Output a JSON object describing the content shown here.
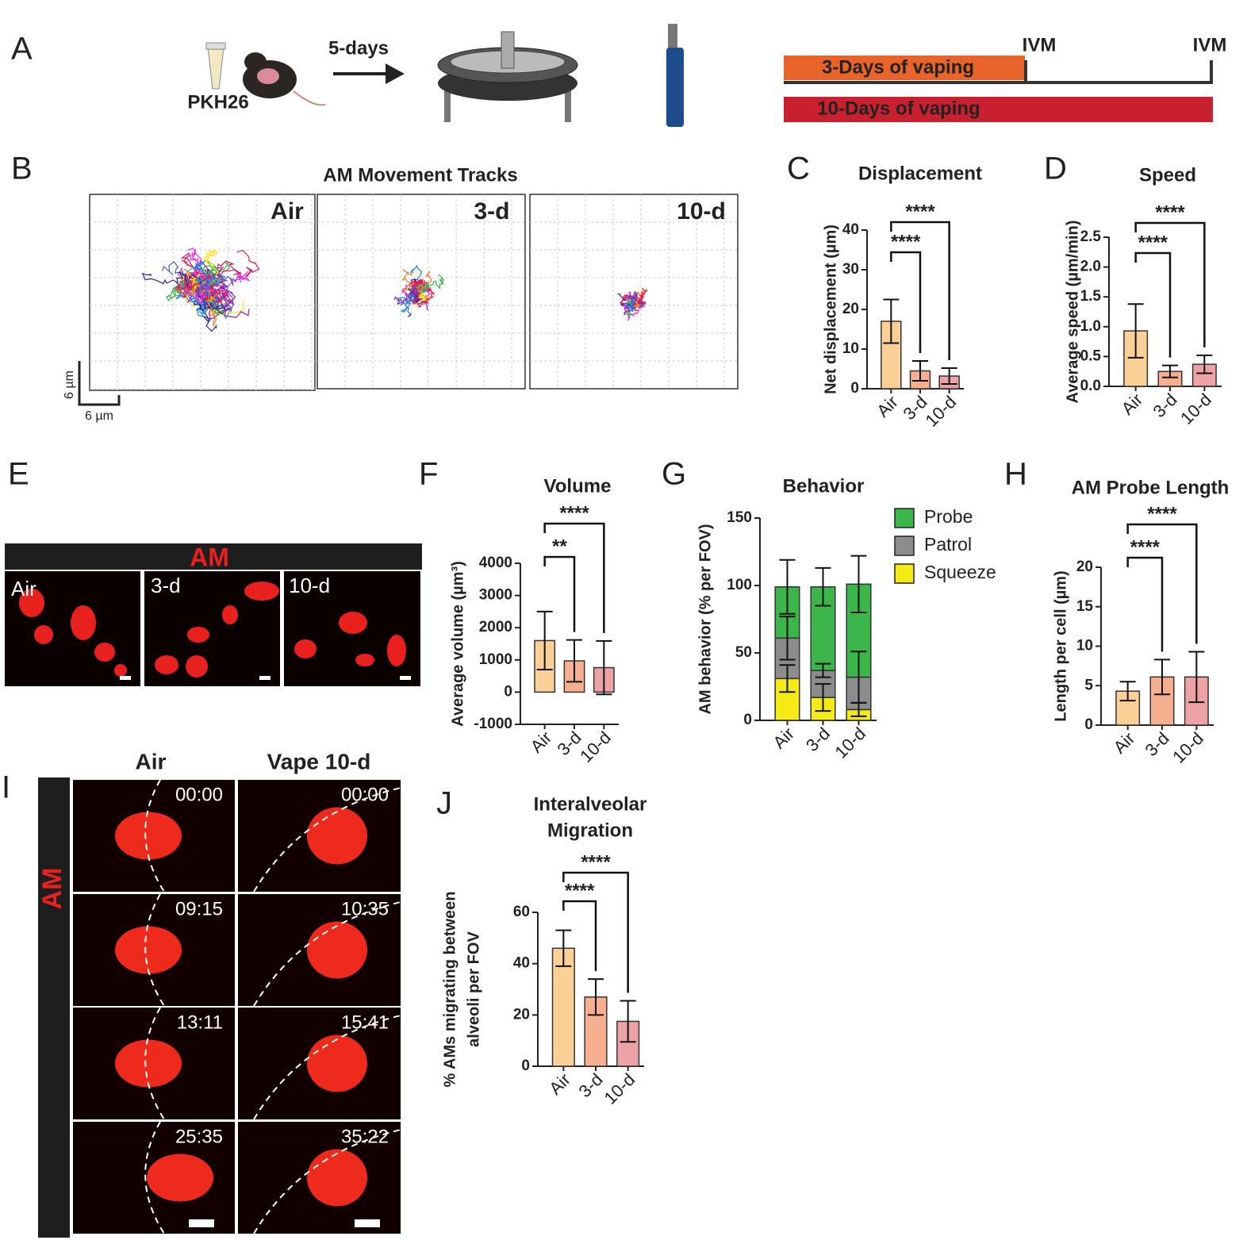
{
  "panel_a": {
    "letter": "A",
    "tracer": "PKH26",
    "interval": "5-days",
    "bars": [
      "3-Days of vaping",
      "10-Days of vaping"
    ],
    "timepoints": [
      "IVM",
      "IVM"
    ]
  },
  "panel_b": {
    "letter": "B",
    "title": "AM Movement Tracks",
    "groups": [
      "Air",
      "3-d",
      "10-d"
    ],
    "scale_y": "6 µm",
    "scale_x": "6 µm"
  },
  "panel_e": {
    "letter": "E",
    "header": "AM",
    "groups": [
      "Air",
      "3-d",
      "10-d"
    ]
  },
  "panel_i": {
    "letter": "I",
    "header": "AM",
    "columns": [
      "Air",
      "Vape 10-d"
    ],
    "times": [
      [
        "00:00",
        "09:15",
        "13:11",
        "25:35"
      ],
      [
        "00:00",
        "10:35",
        "15:41",
        "35:22"
      ]
    ]
  },
  "chart_data": [
    {
      "panel": "C",
      "type": "bar",
      "title": [
        "Displacement"
      ],
      "y_label": [
        "Net displacement (µm)"
      ],
      "categories": [
        "Air",
        "3-d",
        "10-d"
      ],
      "values": [
        17,
        4.5,
        3.2
      ],
      "errors": [
        5.5,
        2.5,
        2
      ],
      "colors": [
        "#fbd096",
        "#f6b08f",
        "#eda3a6"
      ],
      "ylim": [
        0,
        40
      ],
      "yticks": [
        0,
        10,
        20,
        30,
        40
      ],
      "annotations": [
        {
          "from": "Air",
          "to": "3-d",
          "label": "****"
        },
        {
          "from": "Air",
          "to": "10-d",
          "label": "****"
        }
      ]
    },
    {
      "panel": "D",
      "type": "bar",
      "title": [
        "Speed"
      ],
      "y_label": [
        "Average speed (µm/min)"
      ],
      "categories": [
        "Air",
        "3-d",
        "10-d"
      ],
      "values": [
        0.93,
        0.25,
        0.37
      ],
      "errors": [
        0.45,
        0.1,
        0.15
      ],
      "colors": [
        "#fbd096",
        "#f6b08f",
        "#eda3a6"
      ],
      "ylim": [
        0,
        2.5
      ],
      "yticks": [
        {
          "value": 0,
          "label": "0.0"
        },
        0.5,
        {
          "value": 1,
          "label": "1.0"
        },
        1.5,
        {
          "value": 2,
          "label": "2.0"
        },
        2.5
      ],
      "annotations": [
        {
          "from": "Air",
          "to": "3-d",
          "label": "****"
        },
        {
          "from": "Air",
          "to": "10-d",
          "label": "****"
        }
      ]
    },
    {
      "panel": "F",
      "type": "bar",
      "title": [
        "Volume"
      ],
      "y_label": [
        "Average volume (µm³)"
      ],
      "categories": [
        "Air",
        "3-d",
        "10-d"
      ],
      "values": [
        1600,
        970,
        760
      ],
      "errors": [
        900,
        650,
        830
      ],
      "colors": [
        "#fbd096",
        "#f6b08f",
        "#eda3a6"
      ],
      "ylim": [
        -1000,
        4000
      ],
      "yticks": [
        -1000,
        0,
        1000,
        2000,
        3000,
        4000
      ],
      "annotations": [
        {
          "from": "Air",
          "to": "3-d",
          "label": "**"
        },
        {
          "from": "Air",
          "to": "10-d",
          "label": "****"
        }
      ]
    },
    {
      "panel": "G",
      "type": "stacked_bar",
      "title": [
        "Behavior"
      ],
      "y_label": [
        "AM behavior (% per FOV)"
      ],
      "categories": [
        "Air",
        "3-d",
        "10-d"
      ],
      "series": [
        {
          "name": "Squeeze",
          "color": "#f5ea14",
          "values": [
            31,
            17,
            8
          ],
          "errors": [
            10,
            10,
            5
          ]
        },
        {
          "name": "Patrol",
          "color": "#8c8c8c",
          "values": [
            30,
            20,
            24
          ],
          "errors": [
            16,
            5,
            19
          ]
        },
        {
          "name": "Probe",
          "color": "#3cb54a",
          "values": [
            38,
            62,
            69
          ],
          "errors": [
            20,
            14,
            21
          ]
        }
      ],
      "ylim": [
        0,
        150
      ],
      "yticks": [
        0,
        50,
        100,
        150
      ]
    },
    {
      "panel": "H",
      "type": "bar",
      "title": [
        "AM Probe Length"
      ],
      "y_label": [
        "Length per cell (µm)"
      ],
      "categories": [
        "Air",
        "3-d",
        "10-d"
      ],
      "values": [
        4.3,
        6.1,
        6.1
      ],
      "errors": [
        1.2,
        2.2,
        3.2
      ],
      "colors": [
        "#fbd096",
        "#f6b08f",
        "#eda3a6"
      ],
      "ylim": [
        0,
        20
      ],
      "yticks": [
        0,
        5,
        10,
        15,
        20
      ],
      "annotations": [
        {
          "from": "Air",
          "to": "3-d",
          "label": "****"
        },
        {
          "from": "Air",
          "to": "10-d",
          "label": "****"
        }
      ]
    },
    {
      "panel": "J",
      "type": "bar",
      "title": [
        "Interalveolar",
        "Migration"
      ],
      "y_label": [
        "% AMs migrating between",
        "alveoli per FOV"
      ],
      "categories": [
        "Air",
        "3-d",
        "10-d"
      ],
      "values": [
        46,
        27,
        17.5
      ],
      "errors": [
        7,
        7,
        8
      ],
      "colors": [
        "#fbd096",
        "#f6b08f",
        "#eda3a6"
      ],
      "ylim": [
        0,
        60
      ],
      "yticks": [
        0,
        20,
        40,
        60
      ],
      "annotations": [
        {
          "from": "Air",
          "to": "3-d",
          "label": "****"
        },
        {
          "from": "Air",
          "to": "10-d",
          "label": "****"
        }
      ]
    }
  ]
}
